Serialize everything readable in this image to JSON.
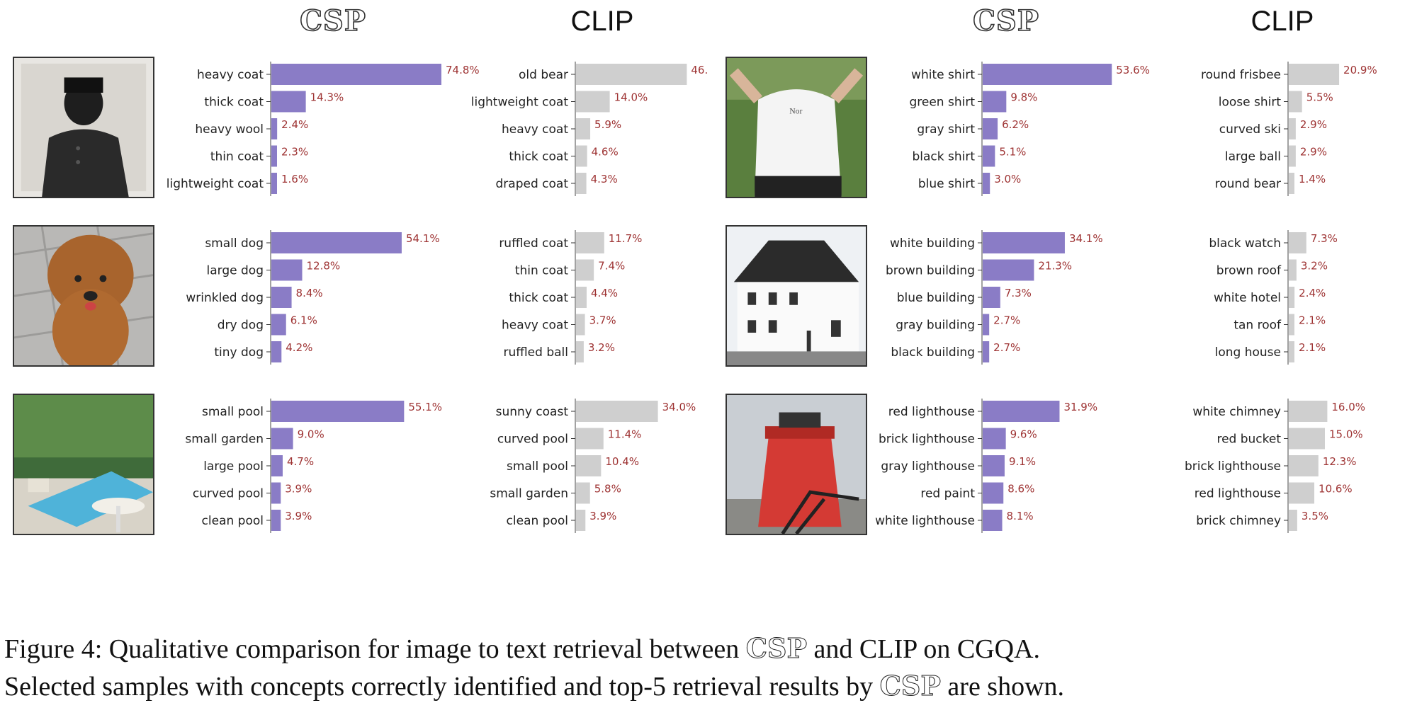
{
  "headers": {
    "csp": "CSP",
    "clip": "CLIP"
  },
  "chart_data": [
    {
      "type": "bar",
      "image": "man-in-heavy-coat",
      "model": "CSP",
      "categories": [
        "heavy coat",
        "thick coat",
        "heavy wool",
        "thin coat",
        "lightweight coat"
      ],
      "values": [
        74.8,
        14.3,
        2.4,
        2.3,
        1.6
      ],
      "labels": [
        "74.8%",
        "14.3%",
        "2.4%",
        "2.3%",
        "1.6%"
      ]
    },
    {
      "type": "bar",
      "image": "man-in-heavy-coat",
      "model": "CLIP",
      "categories": [
        "old bear",
        "lightweight coat",
        "heavy coat",
        "thick coat",
        "draped coat"
      ],
      "values": [
        46.0,
        14.0,
        5.9,
        4.6,
        4.3
      ],
      "labels": [
        "46.",
        "14.0%",
        "5.9%",
        "4.6%",
        "4.3%"
      ]
    },
    {
      "type": "bar",
      "image": "poodle-dog",
      "model": "CSP",
      "categories": [
        "small dog",
        "large dog",
        "wrinkled dog",
        "dry dog",
        "tiny dog"
      ],
      "values": [
        54.1,
        12.8,
        8.4,
        6.1,
        4.2
      ],
      "labels": [
        "54.1%",
        "12.8%",
        "8.4%",
        "6.1%",
        "4.2%"
      ]
    },
    {
      "type": "bar",
      "image": "poodle-dog",
      "model": "CLIP",
      "categories": [
        "ruffled coat",
        "thin coat",
        "thick coat",
        "heavy coat",
        "ruffled ball"
      ],
      "values": [
        11.7,
        7.4,
        4.4,
        3.7,
        3.2
      ],
      "labels": [
        "11.7%",
        "7.4%",
        "4.4%",
        "3.7%",
        "3.2%"
      ]
    },
    {
      "type": "bar",
      "image": "garden-pool",
      "model": "CSP",
      "categories": [
        "small pool",
        "small garden",
        "large pool",
        "curved pool",
        "clean pool"
      ],
      "values": [
        55.1,
        9.0,
        4.7,
        3.9,
        3.9
      ],
      "labels": [
        "55.1%",
        "9.0%",
        "4.7%",
        "3.9%",
        "3.9%"
      ]
    },
    {
      "type": "bar",
      "image": "garden-pool",
      "model": "CLIP",
      "categories": [
        "sunny coast",
        "curved pool",
        "small pool",
        "small garden",
        "clean pool"
      ],
      "values": [
        34.0,
        11.4,
        10.4,
        5.8,
        3.9
      ],
      "labels": [
        "34.0%",
        "11.4%",
        "10.4%",
        "5.8%",
        "3.9%"
      ]
    },
    {
      "type": "bar",
      "image": "white-shirt-player",
      "model": "CSP",
      "categories": [
        "white shirt",
        "green shirt",
        "gray shirt",
        "black shirt",
        "blue shirt"
      ],
      "values": [
        53.6,
        9.8,
        6.2,
        5.1,
        3.0
      ],
      "labels": [
        "53.6%",
        "9.8%",
        "6.2%",
        "5.1%",
        "3.0%"
      ]
    },
    {
      "type": "bar",
      "image": "white-shirt-player",
      "model": "CLIP",
      "categories": [
        "round frisbee",
        "loose shirt",
        "curved ski",
        "large ball",
        "round bear"
      ],
      "values": [
        20.9,
        5.5,
        2.9,
        2.9,
        1.4
      ],
      "labels": [
        "20.9%",
        "5.5%",
        "2.9%",
        "2.9%",
        "1.4%"
      ]
    },
    {
      "type": "bar",
      "image": "white-building",
      "model": "CSP",
      "categories": [
        "white building",
        "brown building",
        "blue building",
        "gray building",
        "black building"
      ],
      "values": [
        34.1,
        21.3,
        7.3,
        2.7,
        2.7
      ],
      "labels": [
        "34.1%",
        "21.3%",
        "7.3%",
        "2.7%",
        "2.7%"
      ]
    },
    {
      "type": "bar",
      "image": "white-building",
      "model": "CLIP",
      "categories": [
        "black watch",
        "brown roof",
        "white hotel",
        "tan roof",
        "long house"
      ],
      "values": [
        7.3,
        3.2,
        2.4,
        2.1,
        2.1
      ],
      "labels": [
        "7.3%",
        "3.2%",
        "2.4%",
        "2.1%",
        "2.1%"
      ]
    },
    {
      "type": "bar",
      "image": "red-lighthouse",
      "model": "CSP",
      "categories": [
        "red lighthouse",
        "brick lighthouse",
        "gray lighthouse",
        "red paint",
        "white lighthouse"
      ],
      "values": [
        31.9,
        9.6,
        9.1,
        8.6,
        8.1
      ],
      "labels": [
        "31.9%",
        "9.6%",
        "9.1%",
        "8.6%",
        "8.1%"
      ]
    },
    {
      "type": "bar",
      "image": "red-lighthouse",
      "model": "CLIP",
      "categories": [
        "white chimney",
        "red bucket",
        "brick lighthouse",
        "red lighthouse",
        "brick chimney"
      ],
      "values": [
        16.0,
        15.0,
        12.3,
        10.6,
        3.5
      ],
      "labels": [
        "16.0%",
        "15.0%",
        "12.3%",
        "10.6%",
        "3.5%"
      ]
    }
  ],
  "caption": {
    "line1_a": "Figure 4:  Qualitative comparison for image to text retrieval between ",
    "line1_csp": "CSP",
    "line1_b": " and CLIP on CGQA.",
    "line2_a": "Selected samples with concepts correctly identified and top-5 retrieval results by ",
    "line2_csp": "CSP",
    "line2_b": " are shown."
  },
  "colors": {
    "csp_bar": "#8a7cc6",
    "clip_bar": "#cfcfcf",
    "value_text": "#9e3333"
  }
}
